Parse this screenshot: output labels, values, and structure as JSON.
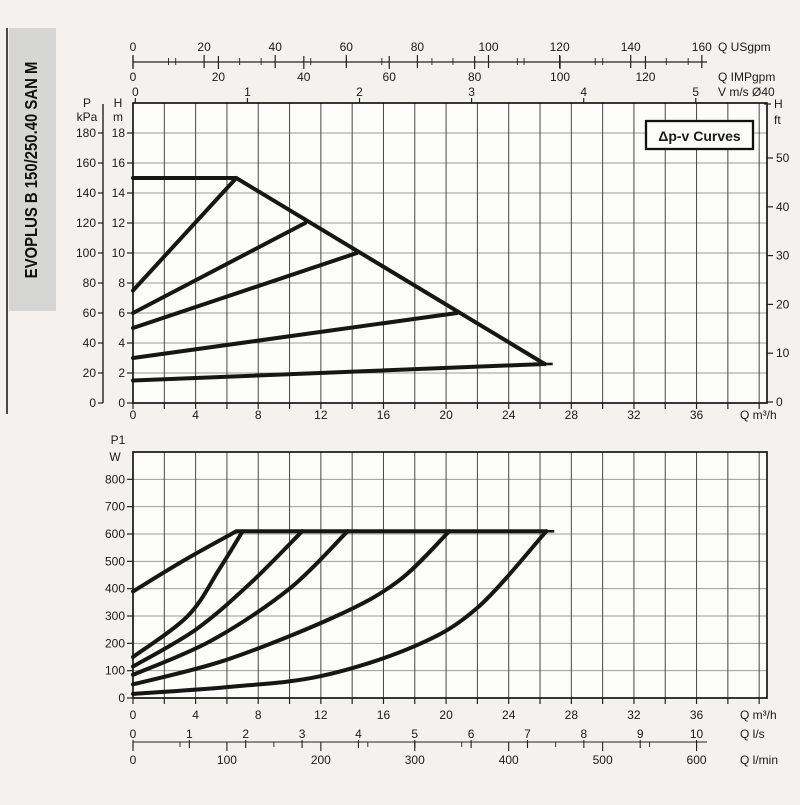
{
  "sidebar": {
    "model": "EVOPLUS B 150/250.40 SAN M"
  },
  "chart_data": [
    {
      "id": "head_capacity_curves",
      "type": "line",
      "annotation": "Δp-v Curves",
      "axes": {
        "bottom": {
          "label": "Q m³/h",
          "tick_labels": [
            0,
            4,
            8,
            12,
            16,
            20,
            24,
            28,
            32,
            36
          ],
          "minor_step": 2,
          "range": [
            0,
            40.5
          ]
        },
        "left_inner": {
          "label": "H m",
          "ticks": [
            0,
            2,
            4,
            6,
            8,
            10,
            12,
            14,
            16,
            18
          ],
          "range": [
            0,
            20
          ]
        },
        "left_outer": {
          "label": "P kPa",
          "ticks": [
            0,
            20,
            40,
            60,
            80,
            100,
            120,
            140,
            160,
            180
          ]
        },
        "right": {
          "label": "H ft",
          "ticks": [
            0,
            10,
            20,
            30,
            40,
            50
          ]
        },
        "top_usgpm": {
          "label": "Q USgpm",
          "ticks": [
            0,
            20,
            40,
            60,
            80,
            100,
            120,
            140,
            160
          ],
          "m3h_per_unit": 0.2271,
          "minor_step": 10
        },
        "top_impgpm": {
          "label": "Q IMPgpm",
          "ticks": [
            0,
            20,
            40,
            60,
            80,
            100,
            120
          ],
          "m3h_per_unit": 0.2728,
          "minor_step": 10
        },
        "top_velocity": {
          "label": "V m/s Ø40",
          "ticks": [
            0,
            1,
            2,
            3,
            4,
            5
          ],
          "m3h_per_unit": 7.16,
          "m3h_offset": 0.15
        }
      },
      "series": [
        {
          "name": "max-curve",
          "straight": true,
          "end_tick": true,
          "points": [
            [
              0,
              15
            ],
            [
              6.6,
              15
            ],
            [
              26.3,
              2.6
            ]
          ]
        },
        {
          "name": "dpv-setpoint-1",
          "straight": true,
          "points": [
            [
              0,
              7.5
            ],
            [
              6.6,
              15
            ]
          ]
        },
        {
          "name": "dpv-setpoint-2",
          "straight": true,
          "points": [
            [
              0,
              6
            ],
            [
              11,
              12
            ]
          ]
        },
        {
          "name": "dpv-setpoint-3",
          "straight": true,
          "points": [
            [
              0,
              5
            ],
            [
              14.3,
              10
            ]
          ]
        },
        {
          "name": "dpv-setpoint-4",
          "straight": true,
          "points": [
            [
              0,
              3
            ],
            [
              20.7,
              6
            ]
          ]
        },
        {
          "name": "dpv-setpoint-5",
          "straight": true,
          "points": [
            [
              0,
              1.5
            ],
            [
              26.3,
              2.6
            ]
          ]
        }
      ]
    },
    {
      "id": "power_curves",
      "type": "line",
      "axes": {
        "left": {
          "label": "P1 W",
          "ticks": [
            0,
            100,
            200,
            300,
            400,
            500,
            600,
            700,
            800
          ],
          "range": [
            0,
            900
          ]
        },
        "bottom_m3h": {
          "label": "Q m³/h",
          "tick_labels": [
            0,
            4,
            8,
            12,
            16,
            20,
            24,
            28,
            32,
            36
          ],
          "minor_step": 2,
          "range": [
            0,
            40.5
          ]
        },
        "bottom_ls": {
          "label": "Q l/s",
          "ticks": [
            0,
            1,
            2,
            3,
            4,
            5,
            6,
            7,
            8,
            9,
            10
          ],
          "m3h_per_unit": 3.6
        },
        "bottom_lmin": {
          "label": "Q l/min",
          "ticks": [
            0,
            100,
            200,
            300,
            400,
            500,
            600
          ],
          "m3h_per_unit": 0.06,
          "minor_step": 50
        }
      },
      "series": [
        {
          "name": "power-max",
          "end_tick": true,
          "plateau_to": 26.4,
          "plateau_w": 610,
          "points": [
            [
              0,
              390
            ],
            [
              3.3,
              505
            ],
            [
              6.6,
              610
            ]
          ]
        },
        {
          "name": "power-setpoint-1",
          "points": [
            [
              0,
              150
            ],
            [
              3.5,
              300
            ],
            [
              5.5,
              470
            ],
            [
              7,
              610
            ]
          ]
        },
        {
          "name": "power-setpoint-2",
          "points": [
            [
              0,
              115
            ],
            [
              4,
              250
            ],
            [
              7.5,
              420
            ],
            [
              10.8,
              610
            ]
          ]
        },
        {
          "name": "power-setpoint-3",
          "points": [
            [
              0,
              85
            ],
            [
              5,
              210
            ],
            [
              10,
              400
            ],
            [
              13.7,
              610
            ]
          ]
        },
        {
          "name": "power-setpoint-4",
          "points": [
            [
              0,
              50
            ],
            [
              6,
              140
            ],
            [
              13,
              300
            ],
            [
              17,
              430
            ],
            [
              20.2,
              610
            ]
          ]
        },
        {
          "name": "power-setpoint-5",
          "points": [
            [
              0,
              15
            ],
            [
              6,
              40
            ],
            [
              12,
              80
            ],
            [
              18,
              190
            ],
            [
              22,
              330
            ],
            [
              26.4,
              610
            ]
          ]
        }
      ]
    }
  ]
}
